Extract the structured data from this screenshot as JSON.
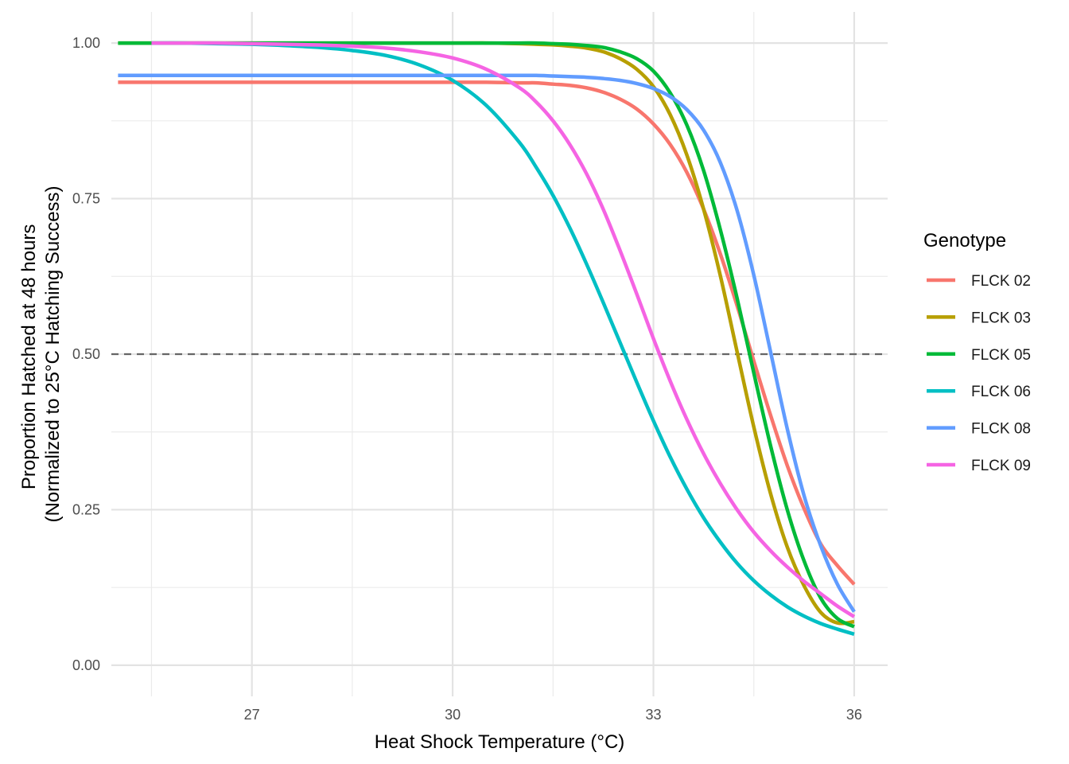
{
  "chart_data": {
    "type": "line",
    "xlabel": "Heat Shock Temperature (°C)",
    "ylabel_lines": [
      "Proportion Hatched at 48 hours",
      "(Normalized to 25°C Hatching Success)"
    ],
    "xlim": [
      24.9,
      36.5
    ],
    "ylim": [
      -0.05,
      1.05
    ],
    "x_ticks": [
      27,
      30,
      33,
      36
    ],
    "x_tick_labels": [
      "27",
      "30",
      "33",
      "36"
    ],
    "x_minor_ticks": [
      25.5,
      28.5,
      31.5,
      34.5
    ],
    "y_ticks": [
      0,
      0.25,
      0.5,
      0.75,
      1
    ],
    "y_tick_labels": [
      "0.00",
      "0.25",
      "0.50",
      "0.75",
      "1.00"
    ],
    "y_minor_ticks": [
      0.125,
      0.375,
      0.625,
      0.875
    ],
    "reference_line": {
      "y": 0.5,
      "style": "dashed",
      "color": "#666666"
    },
    "grid": true,
    "legend": {
      "title": "Genotype",
      "position": "right"
    },
    "x": [
      25.0,
      25.5,
      26.0,
      26.5,
      27.0,
      27.5,
      28.0,
      28.5,
      29.0,
      29.5,
      30.0,
      30.5,
      31.0,
      31.25,
      31.5,
      31.75,
      32.0,
      32.25,
      32.5,
      32.75,
      33.0,
      33.25,
      33.5,
      33.75,
      34.0,
      34.25,
      34.5,
      34.75,
      35.0,
      35.25,
      35.5,
      35.75,
      36.0
    ],
    "series": [
      {
        "name": "FLCK 02",
        "color": "#F8766D",
        "x_start": 25.0,
        "values": [
          0.937,
          0.937,
          0.937,
          0.937,
          0.937,
          0.937,
          0.937,
          0.937,
          0.937,
          0.937,
          0.937,
          0.937,
          0.936,
          0.936,
          0.934,
          0.932,
          0.928,
          0.921,
          0.91,
          0.894,
          0.87,
          0.837,
          0.792,
          0.733,
          0.661,
          0.578,
          0.489,
          0.402,
          0.321,
          0.252,
          0.195,
          0.16,
          0.13
        ]
      },
      {
        "name": "FLCK 03",
        "color": "#B79F00",
        "x_start": 25.0,
        "values": [
          1.0,
          1.0,
          1.0,
          1.0,
          1.0,
          1.0,
          1.0,
          1.0,
          1.0,
          1.0,
          1.0,
          1.0,
          0.999,
          0.998,
          0.997,
          0.995,
          0.992,
          0.986,
          0.975,
          0.958,
          0.93,
          0.885,
          0.82,
          0.733,
          0.626,
          0.504,
          0.383,
          0.276,
          0.19,
          0.128,
          0.085,
          0.068,
          0.07
        ]
      },
      {
        "name": "FLCK 05",
        "color": "#00BA38",
        "x_start": 25.0,
        "values": [
          1.0,
          1.0,
          1.0,
          1.0,
          1.0,
          1.0,
          1.0,
          1.0,
          1.0,
          1.0,
          1.0,
          1.0,
          1.0,
          1.0,
          0.999,
          0.998,
          0.996,
          0.993,
          0.986,
          0.975,
          0.955,
          0.92,
          0.868,
          0.795,
          0.7,
          0.59,
          0.47,
          0.353,
          0.25,
          0.168,
          0.108,
          0.075,
          0.062
        ]
      },
      {
        "name": "FLCK 06",
        "color": "#00BFC4",
        "x_start": 25.5,
        "values": [
          null,
          1.0,
          1.0,
          0.999,
          0.998,
          0.996,
          0.993,
          0.988,
          0.98,
          0.965,
          0.94,
          0.9,
          0.84,
          0.8,
          0.755,
          0.703,
          0.645,
          0.583,
          0.519,
          0.455,
          0.393,
          0.335,
          0.283,
          0.237,
          0.198,
          0.164,
          0.136,
          0.113,
          0.094,
          0.079,
          0.067,
          0.058,
          0.05
        ]
      },
      {
        "name": "FLCK 08",
        "color": "#619CFF",
        "x_start": 25.0,
        "values": [
          0.948,
          0.948,
          0.948,
          0.948,
          0.948,
          0.948,
          0.948,
          0.948,
          0.948,
          0.948,
          0.948,
          0.948,
          0.948,
          0.948,
          0.947,
          0.946,
          0.945,
          0.943,
          0.94,
          0.935,
          0.927,
          0.914,
          0.893,
          0.86,
          0.808,
          0.731,
          0.627,
          0.504,
          0.38,
          0.273,
          0.192,
          0.13,
          0.086
        ]
      },
      {
        "name": "FLCK 09",
        "color": "#F564E3",
        "x_start": 25.5,
        "values": [
          null,
          1.0,
          1.0,
          1.0,
          0.999,
          0.998,
          0.997,
          0.995,
          0.992,
          0.986,
          0.976,
          0.958,
          0.928,
          0.905,
          0.875,
          0.837,
          0.79,
          0.733,
          0.667,
          0.597,
          0.525,
          0.457,
          0.395,
          0.34,
          0.292,
          0.25,
          0.214,
          0.184,
          0.158,
          0.135,
          0.115,
          0.095,
          0.078
        ]
      }
    ]
  }
}
